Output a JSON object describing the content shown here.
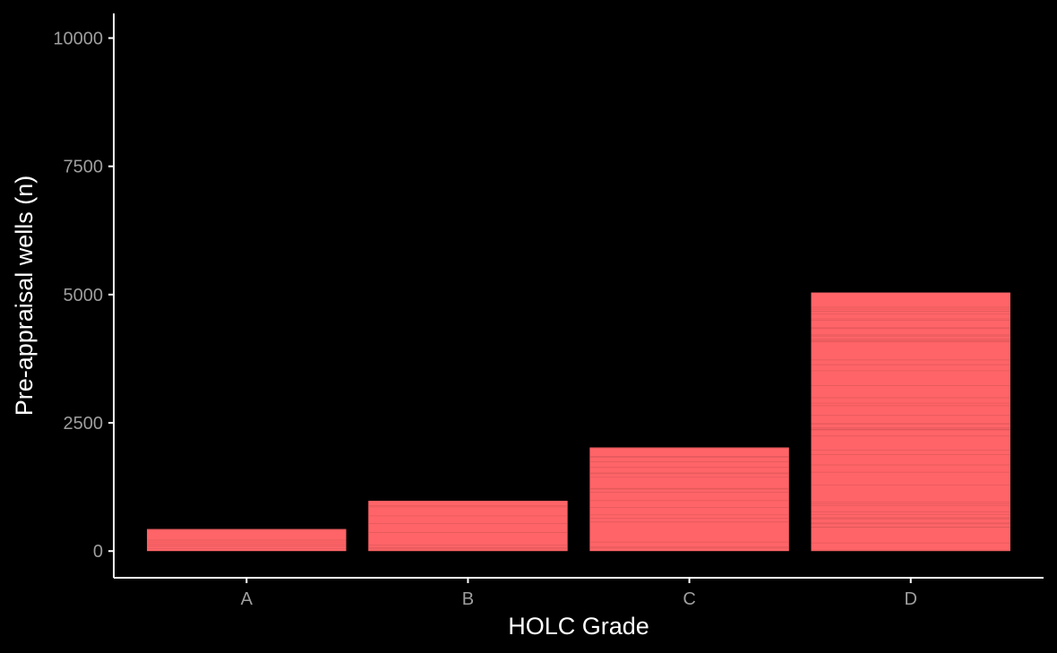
{
  "chart_data": {
    "type": "bar",
    "xlabel": "HOLC Grade",
    "ylabel": "Pre-appraisal wells (n)",
    "categories": [
      "A",
      "B",
      "C",
      "D"
    ],
    "values": [
      430,
      980,
      2020,
      5040
    ],
    "ylim": [
      -520,
      10480
    ],
    "yticks": [
      0,
      2500,
      5000,
      7500,
      10000
    ],
    "grid": false,
    "legend": "none",
    "colors": {
      "background": "#000000",
      "bar_fill": "#ff6468",
      "bar_stripe": "#d85558",
      "axis_line": "#ffffff",
      "tick_label": "#9e9e9e",
      "title_text": "#ffffff"
    }
  }
}
